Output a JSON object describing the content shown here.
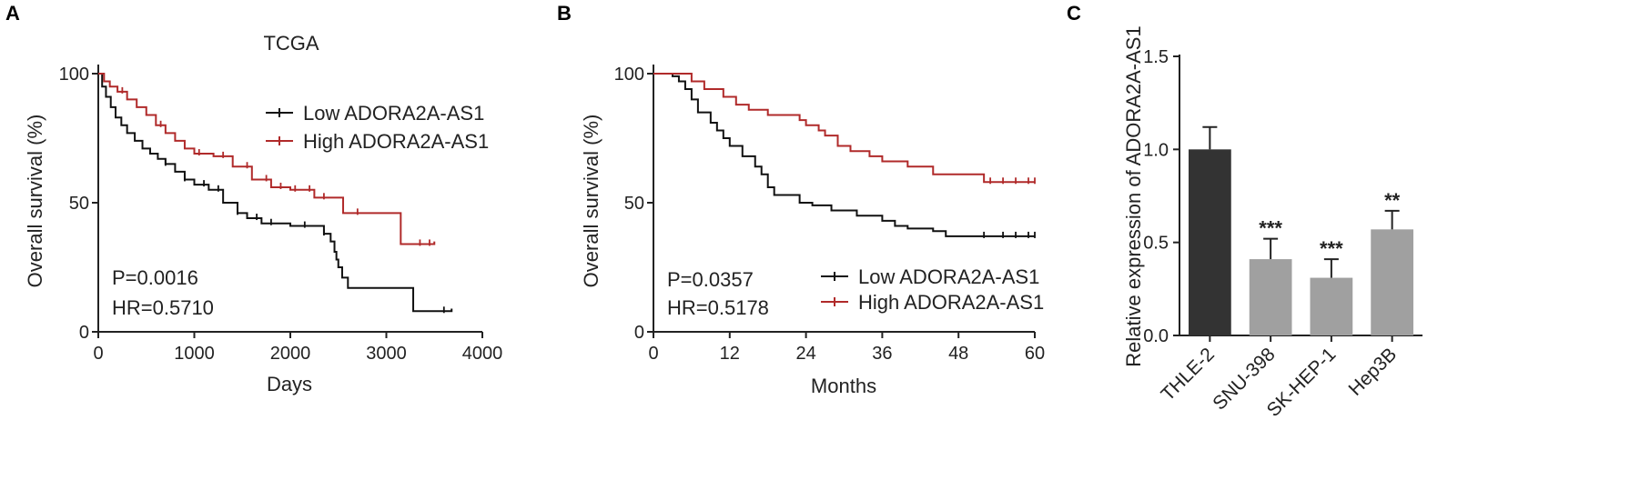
{
  "panels": {
    "A": {
      "letter": "A",
      "title": "TCGA",
      "stats": {
        "p": "P=0.0016",
        "hr": "HR=0.5710"
      }
    },
    "B": {
      "letter": "B",
      "stats": {
        "p": "P=0.0357",
        "hr": "HR=0.5178"
      }
    },
    "C": {
      "letter": "C"
    }
  },
  "colors": {
    "low": "#111111",
    "high": "#b02a2a",
    "dark_bar": "#333333",
    "light_bar": "#a0a0a0",
    "axis": "#222222"
  },
  "chart_data": [
    {
      "type": "line",
      "title": "TCGA",
      "xlabel": "Days",
      "ylabel": "Overall survival (%)",
      "xlim": [
        0,
        4000
      ],
      "ylim": [
        0,
        100
      ],
      "xticks": [
        "0",
        "1000",
        "2000",
        "3000",
        "4000"
      ],
      "yticks": [
        "0",
        "50",
        "100"
      ],
      "legend_position": "top-right",
      "series": [
        {
          "name": "Low ADORA2A-AS1",
          "color": "#111111",
          "x": [
            0,
            40,
            80,
            130,
            180,
            240,
            300,
            380,
            460,
            540,
            620,
            700,
            800,
            900,
            1000,
            1150,
            1300,
            1450,
            1550,
            1700,
            2000,
            2350,
            2420,
            2460,
            2480,
            2500,
            2540,
            2600,
            3100,
            3280,
            3400,
            3680
          ],
          "y": [
            100,
            95,
            91,
            87,
            83,
            80,
            77,
            74,
            71,
            69,
            67,
            65,
            62,
            59,
            57,
            55,
            50,
            46,
            44,
            42,
            41,
            38,
            35,
            31,
            28,
            25,
            21,
            17,
            17,
            8,
            8,
            9
          ],
          "censor_x": [
            700,
            900,
            1100,
            1250,
            1450,
            1650,
            1800,
            2150,
            2350,
            3600
          ]
        },
        {
          "name": "High ADORA2A-AS1",
          "color": "#b02a2a",
          "x": [
            0,
            60,
            120,
            200,
            300,
            400,
            500,
            600,
            700,
            800,
            900,
            1000,
            1200,
            1400,
            1600,
            1800,
            2000,
            2250,
            2500,
            2550,
            2800,
            3100,
            3150,
            3500
          ],
          "y": [
            100,
            97,
            95,
            93,
            90,
            87,
            84,
            80,
            77,
            74,
            71,
            69,
            68,
            64,
            59,
            56,
            55,
            52,
            52,
            46,
            46,
            46,
            34,
            35
          ],
          "censor_x": [
            250,
            650,
            1050,
            1300,
            1550,
            1750,
            1900,
            2050,
            2200,
            2350,
            2700,
            3350,
            3450
          ]
        }
      ],
      "annotations": [
        "P=0.0016",
        "HR=0.5710"
      ]
    },
    {
      "type": "line",
      "xlabel": "Months",
      "ylabel": "Overall survival (%)",
      "xlim": [
        0,
        60
      ],
      "ylim": [
        0,
        100
      ],
      "xticks": [
        "0",
        "12",
        "24",
        "36",
        "48",
        "60"
      ],
      "yticks": [
        "0",
        "50",
        "100"
      ],
      "legend_position": "bottom-right",
      "series": [
        {
          "name": "Low ADORA2A-AS1",
          "color": "#111111",
          "x": [
            0,
            3,
            4,
            5,
            6,
            7,
            9,
            10,
            11,
            12,
            14,
            16,
            17,
            18,
            19,
            20,
            23,
            25,
            28,
            32,
            36,
            38,
            40,
            44,
            46,
            60
          ],
          "y": [
            100,
            99,
            97,
            94,
            90,
            85,
            81,
            78,
            75,
            72,
            68,
            64,
            61,
            56,
            53,
            53,
            50,
            49,
            47,
            45,
            43,
            41,
            40,
            39,
            37,
            37
          ],
          "censor_x": [
            52,
            55,
            57,
            59,
            60
          ]
        },
        {
          "name": "High ADORA2A-AS1",
          "color": "#b02a2a",
          "x": [
            0,
            6,
            8,
            11,
            13,
            15,
            18,
            20,
            23,
            24,
            26,
            27,
            29,
            31,
            34,
            36,
            38,
            40,
            44,
            48,
            52,
            60
          ],
          "y": [
            100,
            97,
            94,
            91,
            88,
            86,
            84,
            84,
            82,
            80,
            78,
            76,
            72,
            70,
            68,
            66,
            66,
            64,
            61,
            61,
            58,
            58
          ],
          "censor_x": [
            53,
            55,
            57,
            59,
            60
          ]
        }
      ],
      "annotations": [
        "P=0.0357",
        "HR=0.5178"
      ]
    },
    {
      "type": "bar",
      "ylabel": "Relative expression of ADORA2A-AS1",
      "categories": [
        "THLE-2",
        "SNU-398",
        "SK-HEP-1",
        "Hep3B"
      ],
      "values": [
        1.0,
        0.41,
        0.31,
        0.57
      ],
      "errors": [
        0.12,
        0.11,
        0.1,
        0.1
      ],
      "significance": [
        "",
        "***",
        "***",
        "**"
      ],
      "ylim": [
        0,
        1.5
      ],
      "yticks": [
        "0.0",
        "0.5",
        "1.0",
        "1.5"
      ],
      "bar_colors": [
        "#333333",
        "#a0a0a0",
        "#a0a0a0",
        "#a0a0a0"
      ]
    }
  ]
}
